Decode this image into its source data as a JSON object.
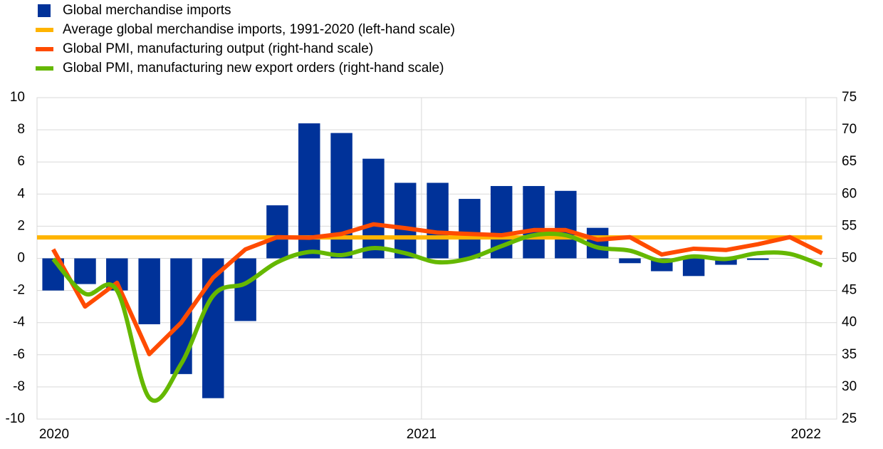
{
  "chart_data": {
    "type": "combo",
    "x": [
      2020.042,
      2020.125,
      2020.208,
      2020.292,
      2020.375,
      2020.458,
      2020.542,
      2020.625,
      2020.708,
      2020.792,
      2020.875,
      2020.958,
      2021.042,
      2021.125,
      2021.208,
      2021.292,
      2021.375,
      2021.458,
      2021.542,
      2021.625,
      2021.708,
      2021.792,
      2021.875,
      2021.958,
      2022.042
    ],
    "xlim": [
      2020,
      2022.08
    ],
    "xticks": [
      2020,
      2021,
      2022
    ],
    "ylim": [
      -10,
      10
    ],
    "yticks": [
      -10,
      -8,
      -6,
      -4,
      -2,
      0,
      2,
      4,
      6,
      8,
      10
    ],
    "y2lim": [
      25,
      75
    ],
    "y2ticks": [
      25,
      30,
      35,
      40,
      45,
      50,
      55,
      60,
      65,
      70,
      75
    ],
    "grid": true,
    "series": [
      {
        "name": "Global merchandise imports",
        "kind": "bar",
        "color": "#003299",
        "values": [
          -2.0,
          -1.6,
          -2.0,
          -4.1,
          -7.2,
          -8.7,
          -3.9,
          3.3,
          8.4,
          7.8,
          6.2,
          4.7,
          4.7,
          3.7,
          4.5,
          4.5,
          4.2,
          1.9,
          -0.3,
          -0.8,
          -1.1,
          -0.4,
          -0.1,
          null,
          null
        ]
      },
      {
        "name": "Average global merchandise imports, 1991-2020 (left-hand scale)",
        "kind": "hline",
        "color": "#ffb400",
        "value": 1.3
      },
      {
        "name": "Global PMI, manufacturing output (right-hand scale)",
        "kind": "line",
        "axis": "y2",
        "color": "#ff4b00",
        "values": [
          51.4,
          42.5,
          46.2,
          35.1,
          40.0,
          47.0,
          51.4,
          53.3,
          53.2,
          53.8,
          55.3,
          54.7,
          54.0,
          53.8,
          53.6,
          54.4,
          54.4,
          52.9,
          53.3,
          50.6,
          51.5,
          51.3,
          52.2,
          53.3,
          50.8
        ]
      },
      {
        "name": "Global PMI, manufacturing new export orders (right-hand scale)",
        "kind": "smooth",
        "axis": "y2",
        "color": "#65b800",
        "values": [
          49.9,
          44.5,
          45.0,
          28.3,
          33.6,
          44.2,
          46.1,
          49.4,
          51.0,
          50.5,
          51.6,
          50.8,
          49.4,
          50.0,
          51.9,
          53.6,
          53.6,
          51.7,
          51.2,
          49.6,
          50.3,
          49.9,
          50.8,
          50.7,
          48.9
        ]
      }
    ]
  }
}
